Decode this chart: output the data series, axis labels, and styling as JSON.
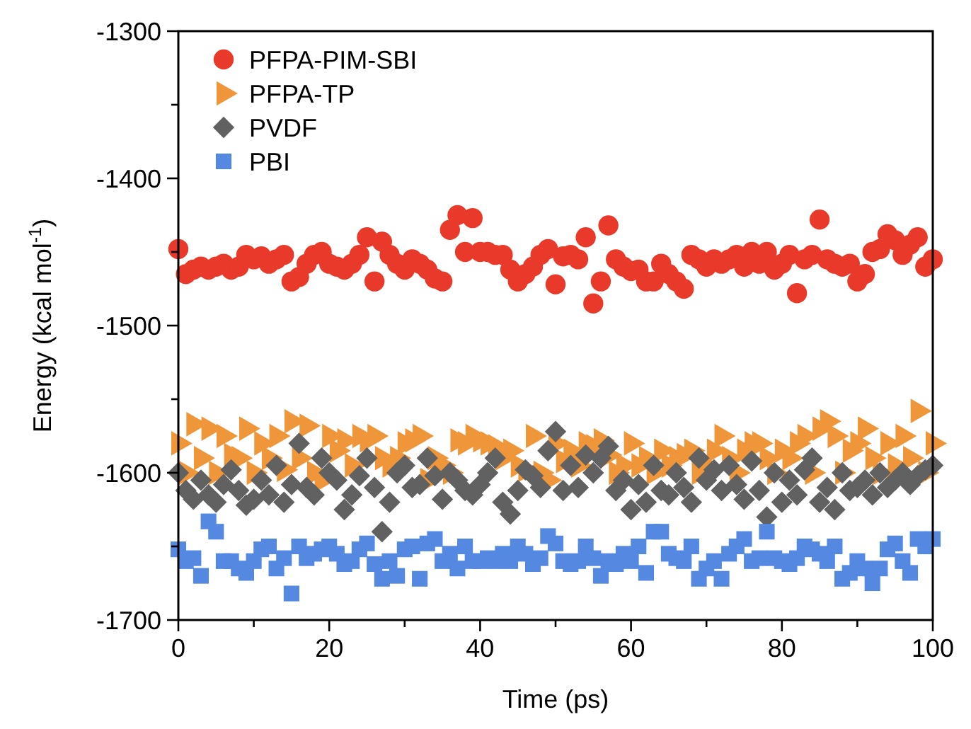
{
  "chart_data": {
    "type": "scatter",
    "xlabel": "Time (ps)",
    "ylabel": "Energy (kcal mol$^{-1}$)",
    "xlim": [
      0,
      100
    ],
    "ylim": [
      -1700,
      -1300
    ],
    "xticks": [
      0,
      {
        "value": 10,
        "label": null
      },
      20,
      {
        "value": 30,
        "label": null
      },
      40,
      {
        "value": 50,
        "label": null
      },
      60,
      {
        "value": 70,
        "label": null
      },
      80,
      {
        "value": 90,
        "label": null
      },
      100
    ],
    "yticks": [
      -1700,
      {
        "value": -1650,
        "label": null
      },
      -1600,
      {
        "value": -1550,
        "label": null
      },
      -1500,
      {
        "value": -1450,
        "label": null
      },
      -1400,
      {
        "value": -1350,
        "label": null
      },
      -1300
    ],
    "grid": false,
    "legend": "top left",
    "x": [
      0,
      1,
      2,
      3,
      4,
      5,
      6,
      7,
      8,
      9,
      10,
      11,
      12,
      13,
      14,
      15,
      16,
      17,
      18,
      19,
      20,
      21,
      22,
      23,
      24,
      25,
      26,
      27,
      28,
      29,
      30,
      31,
      32,
      33,
      34,
      35,
      36,
      37,
      38,
      39,
      40,
      41,
      42,
      43,
      44,
      45,
      46,
      47,
      48,
      49,
      50,
      51,
      52,
      53,
      54,
      55,
      56,
      57,
      58,
      59,
      60,
      61,
      62,
      63,
      64,
      65,
      66,
      67,
      68,
      69,
      70,
      71,
      72,
      73,
      74,
      75,
      76,
      77,
      78,
      79,
      80,
      81,
      82,
      83,
      84,
      85,
      86,
      87,
      88,
      89,
      90,
      91,
      92,
      93,
      94,
      95,
      96,
      97,
      98,
      99,
      100
    ],
    "series": [
      {
        "name": "PFPA-PIM-SBI",
        "color": "#e8392a",
        "marker": "circle",
        "values": [
          -1448,
          -1465,
          -1462,
          -1460,
          -1462,
          -1460,
          -1458,
          -1462,
          -1460,
          -1452,
          -1455,
          -1453,
          -1458,
          -1455,
          -1452,
          -1470,
          -1467,
          -1458,
          -1452,
          -1450,
          -1458,
          -1460,
          -1462,
          -1458,
          -1452,
          -1440,
          -1470,
          -1443,
          -1452,
          -1458,
          -1462,
          -1455,
          -1458,
          -1462,
          -1468,
          -1470,
          -1435,
          -1425,
          -1450,
          -1427,
          -1450,
          -1450,
          -1452,
          -1452,
          -1462,
          -1470,
          -1465,
          -1460,
          -1452,
          -1448,
          -1472,
          -1453,
          -1452,
          -1455,
          -1440,
          -1485,
          -1470,
          -1432,
          -1455,
          -1460,
          -1463,
          -1462,
          -1470,
          -1470,
          -1458,
          -1465,
          -1470,
          -1475,
          -1452,
          -1455,
          -1460,
          -1455,
          -1458,
          -1455,
          -1452,
          -1460,
          -1450,
          -1458,
          -1450,
          -1462,
          -1458,
          -1452,
          -1478,
          -1455,
          -1452,
          -1428,
          -1455,
          -1458,
          -1460,
          -1458,
          -1470,
          -1465,
          -1450,
          -1448,
          -1438,
          -1442,
          -1452,
          -1445,
          -1440,
          -1460,
          -1455
        ]
      },
      {
        "name": "PFPA-TP",
        "color": "#f0963a",
        "marker": "triangle",
        "values": [
          -1580,
          -1600,
          -1567,
          -1590,
          -1570,
          -1600,
          -1575,
          -1588,
          -1590,
          -1570,
          -1600,
          -1580,
          -1590,
          -1575,
          -1598,
          -1565,
          -1590,
          -1568,
          -1600,
          -1605,
          -1575,
          -1585,
          -1578,
          -1595,
          -1575,
          -1578,
          -1575,
          -1590,
          -1595,
          -1590,
          -1580,
          -1578,
          -1575,
          -1605,
          -1590,
          -1595,
          -1600,
          -1578,
          -1580,
          -1575,
          -1578,
          -1580,
          -1582,
          -1590,
          -1585,
          -1595,
          -1598,
          -1575,
          -1600,
          -1605,
          -1580,
          -1592,
          -1585,
          -1595,
          -1580,
          -1582,
          -1578,
          -1588,
          -1600,
          -1595,
          -1580,
          -1595,
          -1590,
          -1600,
          -1585,
          -1595,
          -1590,
          -1588,
          -1585,
          -1600,
          -1595,
          -1585,
          -1575,
          -1590,
          -1600,
          -1585,
          -1580,
          -1580,
          -1590,
          -1600,
          -1585,
          -1590,
          -1580,
          -1575,
          -1600,
          -1570,
          -1565,
          -1575,
          -1600,
          -1585,
          -1580,
          -1570,
          -1590,
          -1600,
          -1580,
          -1595,
          -1575,
          -1590,
          -1558,
          -1600,
          -1580
        ]
      },
      {
        "name": "PVDF",
        "color": "#616161",
        "marker": "diamond",
        "values": [
          -1600,
          -1612,
          -1618,
          -1605,
          -1615,
          -1620,
          -1608,
          -1598,
          -1612,
          -1622,
          -1618,
          -1605,
          -1615,
          -1595,
          -1620,
          -1608,
          -1580,
          -1610,
          -1615,
          -1590,
          -1600,
          -1605,
          -1625,
          -1615,
          -1602,
          -1590,
          -1610,
          -1640,
          -1620,
          -1600,
          -1595,
          -1610,
          -1608,
          -1590,
          -1602,
          -1618,
          -1600,
          -1605,
          -1612,
          -1615,
          -1608,
          -1600,
          -1590,
          -1620,
          -1628,
          -1612,
          -1598,
          -1602,
          -1610,
          -1585,
          -1572,
          -1612,
          -1595,
          -1610,
          -1588,
          -1600,
          -1590,
          -1582,
          -1612,
          -1605,
          -1625,
          -1608,
          -1620,
          -1595,
          -1612,
          -1615,
          -1600,
          -1610,
          -1620,
          -1590,
          -1605,
          -1598,
          -1612,
          -1595,
          -1608,
          -1618,
          -1592,
          -1612,
          -1630,
          -1600,
          -1620,
          -1605,
          -1615,
          -1598,
          -1590,
          -1620,
          -1610,
          -1625,
          -1600,
          -1612,
          -1610,
          -1605,
          -1615,
          -1600,
          -1610,
          -1605,
          -1600,
          -1608,
          -1602,
          -1598,
          -1595
        ]
      },
      {
        "name": "PBI",
        "color": "#5588e0",
        "marker": "square",
        "values": [
          -1652,
          -1660,
          -1658,
          -1670,
          -1633,
          -1640,
          -1660,
          -1660,
          -1665,
          -1668,
          -1660,
          -1652,
          -1650,
          -1665,
          -1658,
          -1682,
          -1650,
          -1658,
          -1655,
          -1652,
          -1650,
          -1655,
          -1662,
          -1660,
          -1652,
          -1648,
          -1662,
          -1672,
          -1660,
          -1670,
          -1652,
          -1650,
          -1672,
          -1648,
          -1645,
          -1660,
          -1655,
          -1665,
          -1650,
          -1660,
          -1660,
          -1658,
          -1660,
          -1655,
          -1660,
          -1650,
          -1655,
          -1662,
          -1658,
          -1643,
          -1648,
          -1660,
          -1662,
          -1660,
          -1650,
          -1658,
          -1670,
          -1660,
          -1662,
          -1655,
          -1660,
          -1650,
          -1668,
          -1640,
          -1640,
          -1655,
          -1658,
          -1660,
          -1650,
          -1672,
          -1665,
          -1660,
          -1672,
          -1655,
          -1650,
          -1645,
          -1660,
          -1658,
          -1640,
          -1658,
          -1660,
          -1662,
          -1658,
          -1650,
          -1652,
          -1655,
          -1660,
          -1650,
          -1672,
          -1668,
          -1660,
          -1665,
          -1675,
          -1665,
          -1652,
          -1648,
          -1660,
          -1668,
          -1645,
          -1650,
          -1645
        ]
      }
    ]
  }
}
